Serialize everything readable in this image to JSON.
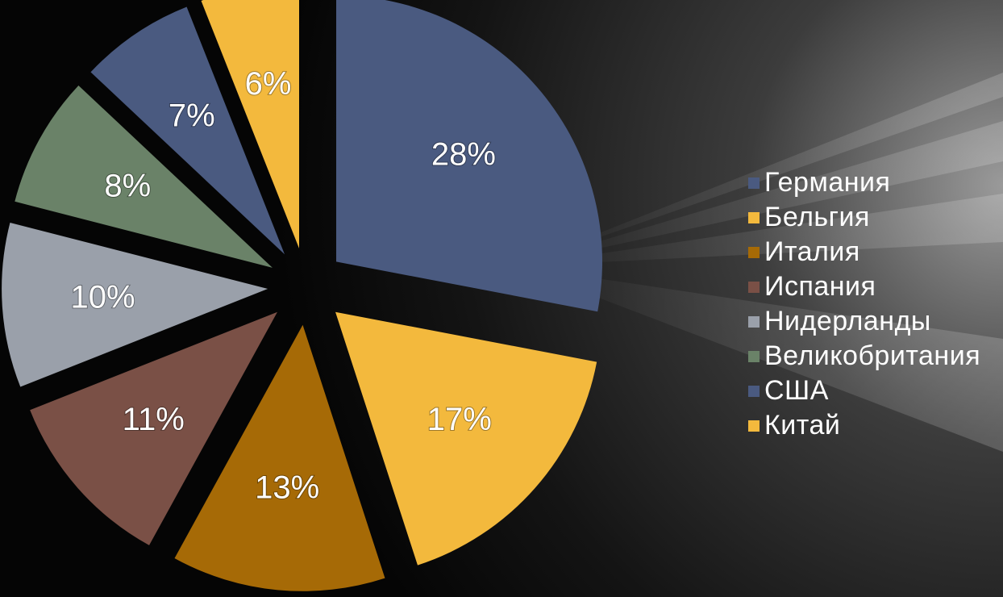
{
  "chart_data": {
    "type": "pie",
    "exploded": true,
    "start_angle_deg": 0,
    "direction": "clockwise",
    "slices": [
      {
        "name": "Германия",
        "value": 28,
        "label": "28%",
        "color": "#4a5a80"
      },
      {
        "name": "Бельгия",
        "value": 17,
        "label": "17%",
        "color": "#f3b93d"
      },
      {
        "name": "Италия",
        "value": 13,
        "label": "13%",
        "color": "#a66a06"
      },
      {
        "name": "Испания",
        "value": 11,
        "label": "11%",
        "color": "#7a5046"
      },
      {
        "name": "Нидерланды",
        "value": 10,
        "label": "10%",
        "color": "#9aa0aa"
      },
      {
        "name": "Великобритания",
        "value": 8,
        "label": "8%",
        "color": "#6a8268"
      },
      {
        "name": "США",
        "value": 7,
        "label": "7%",
        "color": "#4a5a80"
      },
      {
        "name": "Китай",
        "value": 6,
        "label": "6%",
        "color": "#f3b93d"
      }
    ],
    "legend_position": "right"
  }
}
